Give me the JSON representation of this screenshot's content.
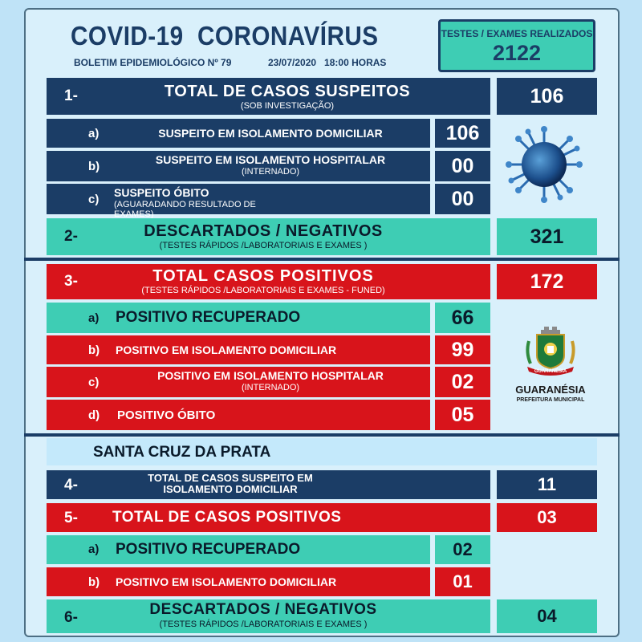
{
  "header": {
    "title": "COVID-19  CORONAVÍRUS",
    "bulletin": "BOLETIM EPIDEMIOLÓGICO Nº 79",
    "date_time": "23/07/2020   18:00 HORAS",
    "tests_label": "TESTES / EXAMES REALIZADOS",
    "tests_value": "2122"
  },
  "sec1": {
    "index": "1-",
    "label": "TOTAL DE CASOS SUSPEITOS",
    "note": "(SOB INVESTIGAÇÃO)",
    "value": "106",
    "items": [
      {
        "index": "a)",
        "label": "SUSPEITO EM ISOLAMENTO DOMICILIAR",
        "note": "",
        "value": "106"
      },
      {
        "index": "b)",
        "label": "SUSPEITO EM ISOLAMENTO HOSPITALAR",
        "note": "(INTERNADO)",
        "value": "00"
      },
      {
        "index": "c)",
        "label": "SUSPEITO ÓBITO",
        "note": "(AGUARADANDO RESULTADO  DE EXAMES)",
        "value": "00"
      }
    ]
  },
  "sec2": {
    "index": "2-",
    "label": "DESCARTADOS / NEGATIVOS",
    "note": "(TESTES RÁPIDOS /LABORATORIAIS E EXAMES )",
    "value": "321"
  },
  "sec3": {
    "index": "3-",
    "label": "TOTAL CASOS POSITIVOS",
    "note": "(TESTES RÁPIDOS /LABORATORIAIS E EXAMES - FUNED)",
    "value": "172",
    "items": [
      {
        "index": "a)",
        "label": "POSITIVO RECUPERADO",
        "note": "",
        "value": "66"
      },
      {
        "index": "b)",
        "label": "POSITIVO EM ISOLAMENTO DOMICILIAR",
        "note": "",
        "value": "99"
      },
      {
        "index": "c)",
        "label": "POSITIVO EM ISOLAMENTO HOSPITALAR",
        "note": "(INTERNADO)",
        "value": "02"
      },
      {
        "index": "d)",
        "label": "POSITIVO ÓBITO",
        "note": "",
        "value": "05"
      }
    ]
  },
  "logo": {
    "name": "GUARANÉSIA",
    "subtitle": "PREFEITURA MUNICIPAL",
    "ribbon": "GUARANÉSIA"
  },
  "district": {
    "title": "SANTA CRUZ DA PRATA"
  },
  "sec4": {
    "index": "4-",
    "label_line1": "TOTAL DE CASOS SUSPEITO EM",
    "label_line2": "ISOLAMENTO DOMICILIAR",
    "value": "11"
  },
  "sec5": {
    "index": "5-",
    "label": "TOTAL DE CASOS POSITIVOS",
    "value": "03",
    "items": [
      {
        "index": "a)",
        "label": "POSITIVO RECUPERADO",
        "value": "02"
      },
      {
        "index": "b)",
        "label": "POSITIVO EM ISOLAMENTO DOMICILIAR",
        "value": "01"
      }
    ]
  },
  "sec6": {
    "index": "6-",
    "label": "DESCARTADOS / NEGATIVOS",
    "note": "(TESTES RÁPIDOS /LABORATORIAIS E EXAMES )",
    "value": "04"
  },
  "colors": {
    "navy": "#1b3d66",
    "red": "#d8141b",
    "teal": "#3ecdb4",
    "light": "#c4e9fb",
    "background": "#bfe3f7"
  },
  "icons": {
    "virus": "coronavirus-icon",
    "crest": "municipal-crest-icon"
  }
}
